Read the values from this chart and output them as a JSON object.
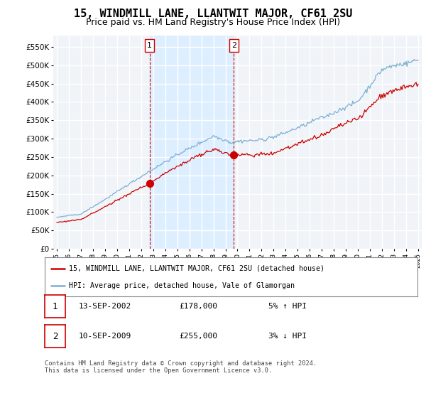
{
  "title": "15, WINDMILL LANE, LLANTWIT MAJOR, CF61 2SU",
  "subtitle": "Price paid vs. HM Land Registry's House Price Index (HPI)",
  "ylabel_ticks": [
    "£0",
    "£50K",
    "£100K",
    "£150K",
    "£200K",
    "£250K",
    "£300K",
    "£350K",
    "£400K",
    "£450K",
    "£500K",
    "£550K"
  ],
  "ytick_values": [
    0,
    50000,
    100000,
    150000,
    200000,
    250000,
    300000,
    350000,
    400000,
    450000,
    500000,
    550000
  ],
  "ylim": [
    0,
    580000
  ],
  "x_start_year": 1995,
  "x_end_year": 2025,
  "xtick_years": [
    1995,
    1996,
    1997,
    1998,
    1999,
    2000,
    2001,
    2002,
    2003,
    2004,
    2005,
    2006,
    2007,
    2008,
    2009,
    2010,
    2011,
    2012,
    2013,
    2014,
    2015,
    2016,
    2017,
    2018,
    2019,
    2020,
    2021,
    2022,
    2023,
    2024,
    2025
  ],
  "property_color": "#cc0000",
  "hpi_color": "#7ab0d4",
  "highlight_color": "#ddeeff",
  "background_color": "#f0f4f8",
  "grid_color": "#ffffff",
  "sale1_x": 2002.7,
  "sale1_price": 178000,
  "sale1_label": "1",
  "sale1_date": "13-SEP-2002",
  "sale1_price_str": "£178,000",
  "sale1_hpi_str": "5% ↑ HPI",
  "sale2_x": 2009.7,
  "sale2_price": 255000,
  "sale2_label": "2",
  "sale2_date": "10-SEP-2009",
  "sale2_price_str": "£255,000",
  "sale2_hpi_str": "3% ↓ HPI",
  "legend_property": "15, WINDMILL LANE, LLANTWIT MAJOR, CF61 2SU (detached house)",
  "legend_hpi": "HPI: Average price, detached house, Vale of Glamorgan",
  "footer": "Contains HM Land Registry data © Crown copyright and database right 2024.\nThis data is licensed under the Open Government Licence v3.0.",
  "title_fontsize": 11,
  "subtitle_fontsize": 9,
  "tick_fontsize": 7.5,
  "legend_fontsize": 8
}
